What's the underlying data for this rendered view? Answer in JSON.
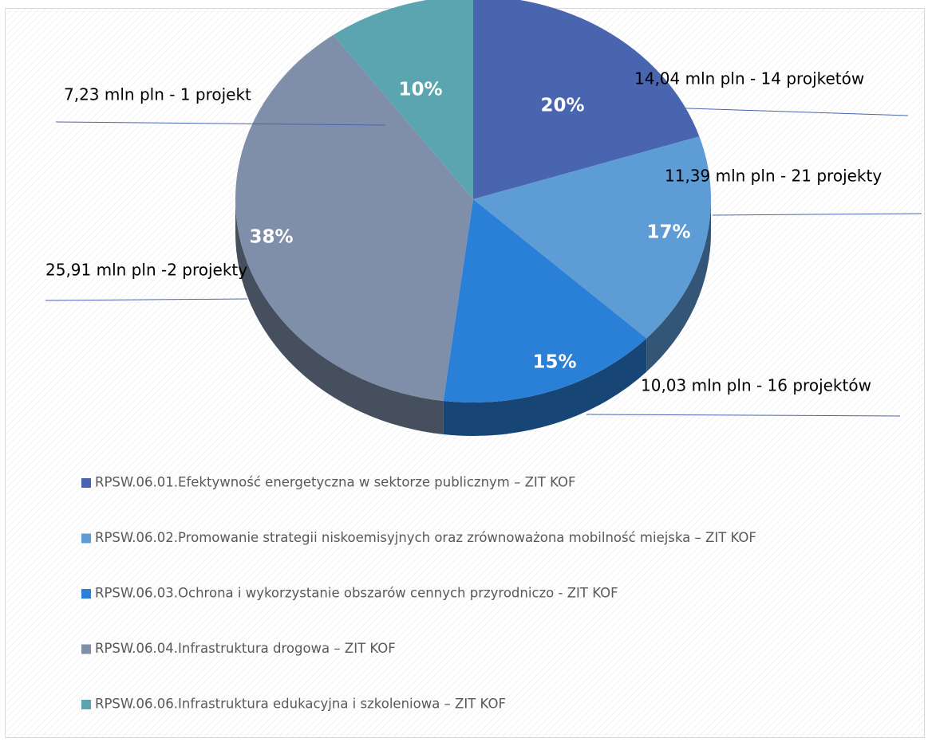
{
  "chart_data": {
    "type": "pie",
    "categories": [
      "RPSW.06.01.Efektywność energetyczna w sektorze publicznym – ZIT KOF",
      "RPSW.06.02.Promowanie strategii niskoemisyjnych oraz zrównoważona mobilność miejska – ZIT KOF",
      "RPSW.06.03.Ochrona i wykorzystanie obszarów cennych przyrodniczo - ZIT KOF",
      "RPSW.06.04.Infrastruktura drogowa – ZIT KOF",
      "RPSW.06.06.Infrastruktura edukacyjna i szkoleniowa – ZIT KOF"
    ],
    "values": [
      20,
      17,
      15,
      38,
      10
    ],
    "value_labels": [
      "20%",
      "17%",
      "15%",
      "38%",
      "10%"
    ],
    "annotations": [
      "14,04 mln pln - 14 projketów",
      "11,39 mln pln - 21 projekty",
      "10,03 mln  pln - 16 projektów",
      "25,91 mln pln -2 projekty",
      "7,23 mln pln - 1 projekt"
    ],
    "colors": [
      "#4a65b0",
      "#5e9cd6",
      "#2a7fd6",
      "#7f8fa9",
      "#5aa5b0"
    ],
    "legend": "bottom"
  }
}
